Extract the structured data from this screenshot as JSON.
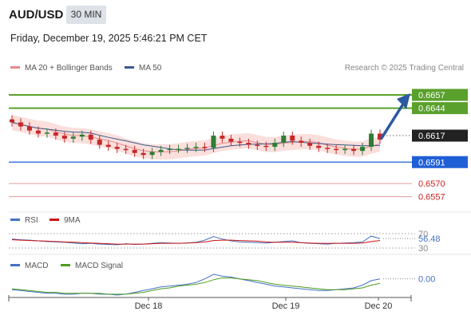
{
  "header": {
    "pair": "AUD/USD",
    "interval": "30 MIN",
    "datetime": "Friday, December 19, 2025 5:46:21 PM CET",
    "credit": "Research © 2025 Trading Central"
  },
  "legend": {
    "ma20_label": "MA 20 + Bollinger Bands",
    "ma50_label": "MA 50",
    "ma20_color": "#e88a8a",
    "ma50_color": "#3a5a8c"
  },
  "colors": {
    "resistance": "#5aa02c",
    "support": "#1f5fd6",
    "target_red": "#cc2222",
    "candle_up": "#2e7d32",
    "candle_down": "#c62828",
    "band_fill": "#f9d9d6",
    "current": "#222222",
    "arrow": "#2c5aa0"
  },
  "chart_data": [
    {
      "type": "candlestick",
      "title": "AUD/USD 30 MIN",
      "ylim": [
        0.6545,
        0.6675
      ],
      "x_ticks": [
        "Dec 18",
        "Dec 19",
        "Dec 20"
      ],
      "approx_close_path": [
        0.663,
        0.6626,
        0.6622,
        0.6619,
        0.662,
        0.6617,
        0.6614,
        0.6616,
        0.6618,
        0.6613,
        0.6608,
        0.6606,
        0.6604,
        0.6603,
        0.66,
        0.6598,
        0.6601,
        0.6603,
        0.6604,
        0.6604,
        0.6605,
        0.6606,
        0.6605,
        0.6617,
        0.6614,
        0.6611,
        0.661,
        0.6608,
        0.6607,
        0.6606,
        0.661,
        0.6617,
        0.6612,
        0.661,
        0.6607,
        0.6605,
        0.6604,
        0.6603,
        0.6604,
        0.6602,
        0.6606,
        0.6619,
        0.6613
      ],
      "levels": [
        {
          "label": "0.6657",
          "value": 0.6657,
          "kind": "resistance"
        },
        {
          "label": "0.6644",
          "value": 0.6644,
          "kind": "resistance"
        },
        {
          "label": "0.6617",
          "value": 0.6617,
          "kind": "current"
        },
        {
          "label": "0.6591",
          "value": 0.6591,
          "kind": "support"
        },
        {
          "label": "0.6570",
          "value": 0.657,
          "kind": "target"
        },
        {
          "label": "0.6557",
          "value": 0.6557,
          "kind": "target"
        }
      ],
      "series": [
        {
          "name": "MA 20 + Bollinger Bands"
        },
        {
          "name": "MA 50"
        }
      ]
    },
    {
      "type": "line",
      "title": "RSI",
      "ylim": [
        30,
        70
      ],
      "tick_labels": [
        "70",
        "30"
      ],
      "current_label": "56.48",
      "series": [
        {
          "name": "RSI",
          "color": "#4472c4",
          "values": [
            55,
            53,
            52,
            50,
            48,
            47,
            46,
            44,
            42,
            43,
            41,
            40,
            39,
            42,
            40,
            41,
            43,
            45,
            44,
            43,
            44,
            46,
            52,
            62,
            55,
            50,
            47,
            46,
            45,
            44,
            46,
            48,
            50,
            45,
            43,
            42,
            41,
            43,
            44,
            45,
            47,
            63,
            56.48
          ]
        },
        {
          "name": "9MA",
          "color": "#cc1111",
          "values": [
            53,
            52,
            51,
            50,
            49,
            48,
            47,
            46,
            45,
            44,
            43,
            42,
            41,
            41,
            41,
            41,
            42,
            43,
            43,
            43,
            44,
            45,
            47,
            51,
            52,
            52,
            51,
            50,
            49,
            47,
            46,
            46,
            46,
            45,
            44,
            43,
            43,
            43,
            43,
            43,
            44,
            48,
            51
          ]
        }
      ]
    },
    {
      "type": "line",
      "title": "MACD",
      "current_label": "0.00",
      "series": [
        {
          "name": "MACD",
          "color": "#4472c4",
          "values": [
            -0.0002,
            -0.0003,
            -0.0004,
            -0.0005,
            -0.0006,
            -0.0006,
            -0.0007,
            -0.0007,
            -0.0006,
            -0.0006,
            -0.0007,
            -0.0007,
            -0.0008,
            -0.0007,
            -0.0005,
            -0.0003,
            -0.0001,
            0.0001,
            0.0002,
            0.0003,
            0.0004,
            0.0006,
            0.001,
            0.0015,
            0.0013,
            0.0012,
            0.001,
            0.0008,
            0.0006,
            0.0004,
            0.0002,
            0.0001,
            0.0,
            -0.0001,
            -0.0002,
            -0.0003,
            -0.0003,
            -0.0002,
            -0.0001,
            0.0,
            0.0003,
            0.0008,
            0.001
          ]
        },
        {
          "name": "MACD Signal",
          "color": "#4f9a1f",
          "values": [
            -0.0001,
            -0.0002,
            -0.0003,
            -0.0004,
            -0.0005,
            -0.0005,
            -0.0006,
            -0.0006,
            -0.0006,
            -0.0006,
            -0.0006,
            -0.0007,
            -0.0007,
            -0.0007,
            -0.0006,
            -0.0005,
            -0.0003,
            -0.0001,
            0.0,
            0.0002,
            0.0003,
            0.0004,
            0.0006,
            0.0009,
            0.0011,
            0.0011,
            0.001,
            0.0009,
            0.0008,
            0.0006,
            0.0004,
            0.0003,
            0.0002,
            0.0001,
            0.0,
            -0.0001,
            -0.0002,
            -0.0002,
            -0.0002,
            -0.0001,
            0.0,
            0.0003,
            0.0005
          ]
        }
      ]
    }
  ],
  "rsi_legend": {
    "rsi": "RSI",
    "ma": "9MA"
  },
  "macd_legend": {
    "macd": "MACD",
    "signal": "MACD Signal"
  }
}
